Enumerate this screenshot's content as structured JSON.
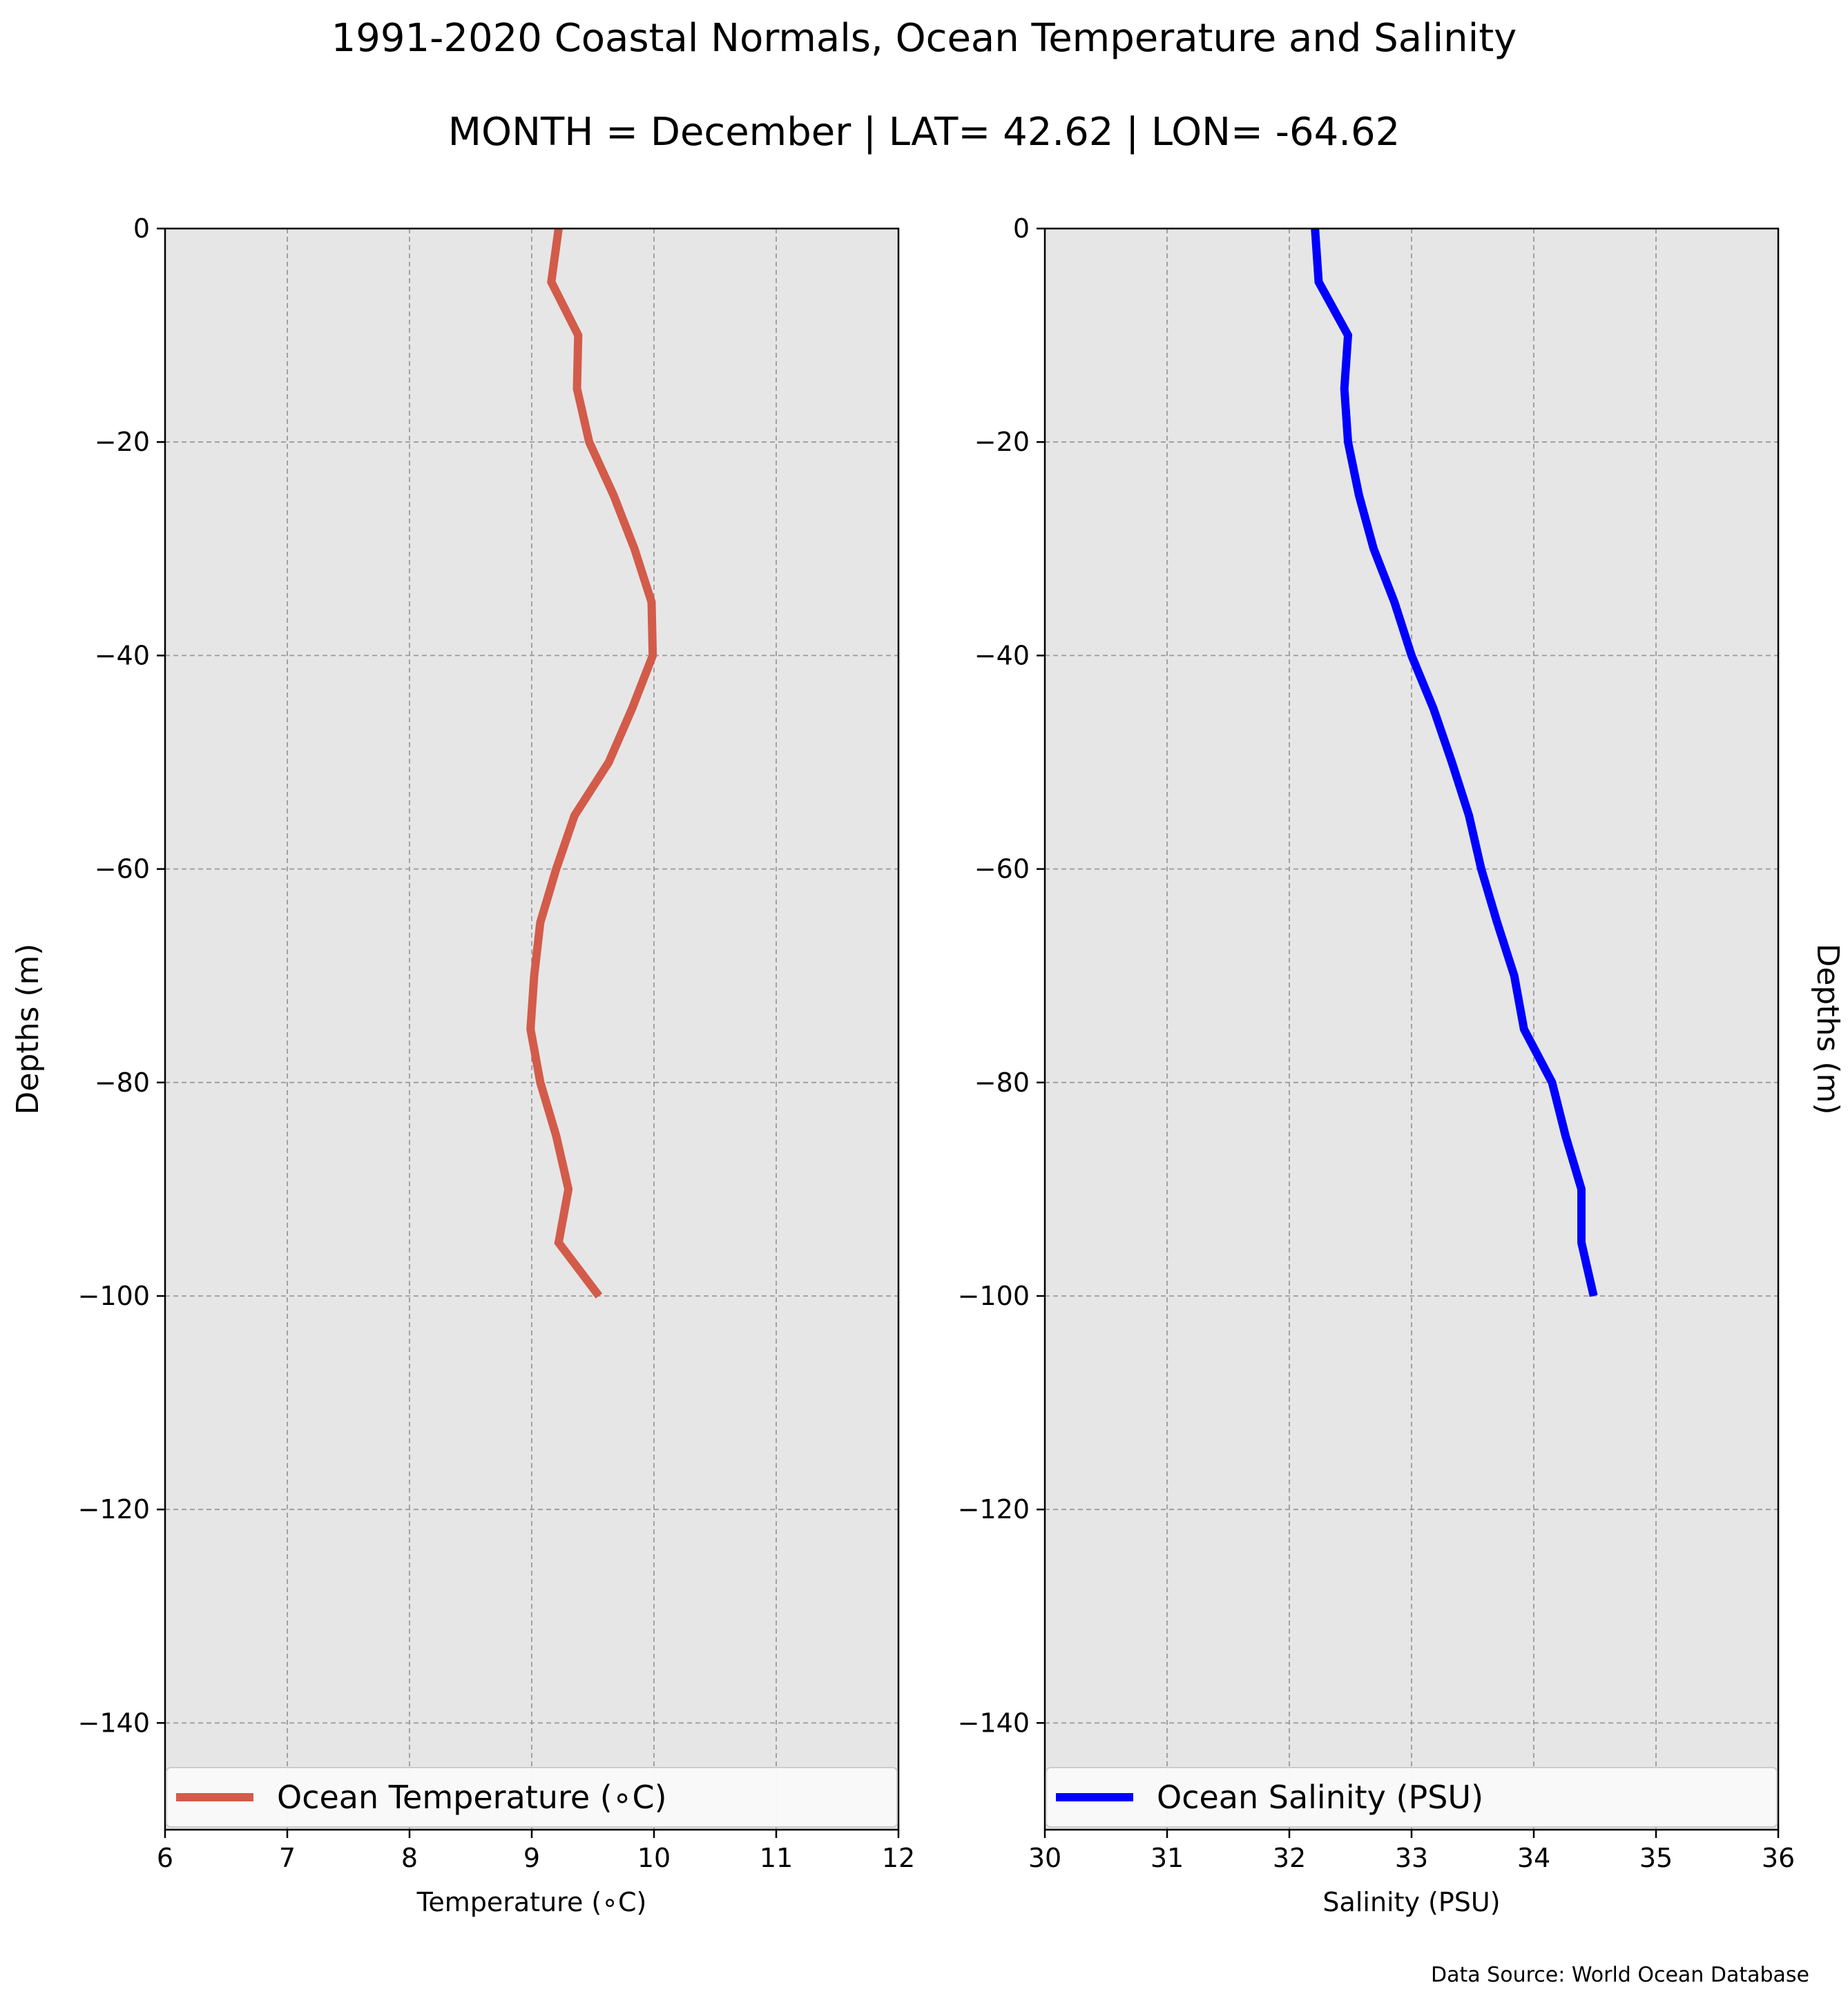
{
  "title": "1991-2020 Coastal Normals, Ocean Temperature and Salinity",
  "subtitle": "MONTH = December | LAT= 42.62 | LON= -64.62",
  "source": "Data Source: World Ocean Database",
  "chart_data": [
    {
      "type": "line",
      "orientation": "profile (value on x, depth on y)",
      "xlabel": "Temperature ($^\\circ$C)",
      "xlabel_display": "Temperature (∘C)",
      "ylabel": "Depths (m)",
      "xlim": [
        6,
        12
      ],
      "ylim": [
        -150,
        0
      ],
      "xticks": [
        "6",
        "7",
        "8",
        "9",
        "10",
        "11",
        "12"
      ],
      "yticks": [
        "0",
        "−20",
        "−40",
        "−60",
        "−80",
        "−100",
        "−120",
        "−140"
      ],
      "grid": true,
      "background": "#e6e6e6",
      "legend_placement": "lower",
      "series": [
        {
          "name": "Ocean Temperature (∘C)",
          "color": "#d35b4a",
          "depth": [
            0,
            -5,
            -10,
            -15,
            -20,
            -25,
            -30,
            -35,
            -40,
            -45,
            -50,
            -55,
            -60,
            -65,
            -70,
            -75,
            -80,
            -85,
            -90,
            -95,
            -100
          ],
          "values": [
            9.22,
            9.16,
            9.38,
            9.37,
            9.47,
            9.67,
            9.84,
            9.98,
            9.99,
            9.82,
            9.63,
            9.35,
            9.2,
            9.07,
            9.02,
            8.99,
            9.07,
            9.2,
            9.3,
            9.22,
            9.55
          ]
        }
      ]
    },
    {
      "type": "line",
      "orientation": "profile (value on x, depth on y)",
      "xlabel": "Salinity (PSU)",
      "ylabel": "Depths (m)",
      "xlim": [
        30,
        36
      ],
      "ylim": [
        -150,
        0
      ],
      "xticks": [
        "30",
        "31",
        "32",
        "33",
        "34",
        "35",
        "36"
      ],
      "yticks": [
        "0",
        "−20",
        "−40",
        "−60",
        "−80",
        "−100",
        "−120",
        "−140"
      ],
      "grid": true,
      "background": "#e6e6e6",
      "legend_placement": "lower",
      "series": [
        {
          "name": "Ocean Salinity (PSU)",
          "color": "#0000ff",
          "depth": [
            0,
            -5,
            -10,
            -15,
            -20,
            -25,
            -30,
            -35,
            -40,
            -45,
            -50,
            -55,
            -60,
            -65,
            -70,
            -75,
            -80,
            -85,
            -90,
            -95,
            -100
          ],
          "values": [
            32.21,
            32.24,
            32.48,
            32.45,
            32.48,
            32.57,
            32.69,
            32.86,
            33.0,
            33.18,
            33.33,
            33.47,
            33.57,
            33.7,
            33.84,
            33.92,
            34.15,
            34.26,
            34.39,
            34.39,
            34.49
          ]
        }
      ]
    }
  ]
}
